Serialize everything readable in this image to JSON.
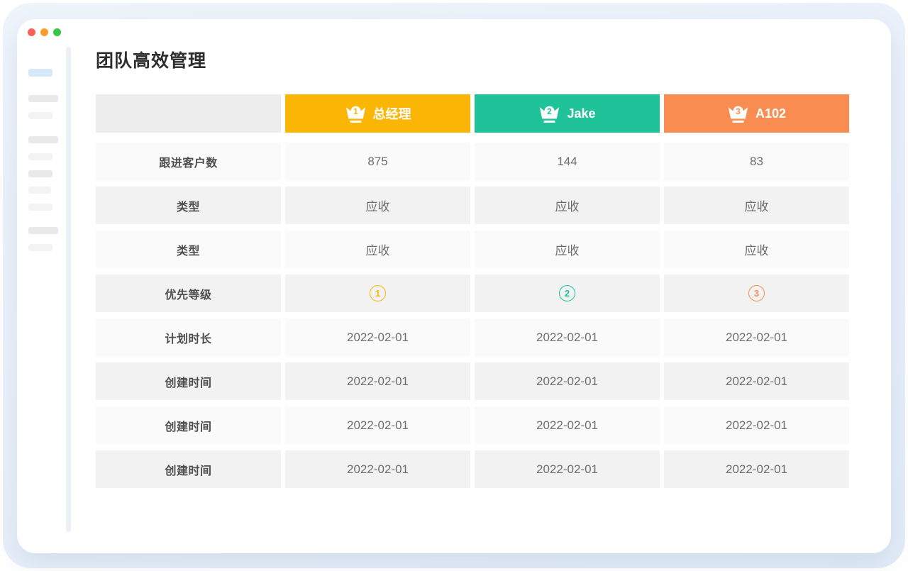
{
  "window": {
    "title": "团队高效管理",
    "traffic_lights": [
      {
        "name": "close",
        "color": "#fb5f57"
      },
      {
        "name": "minimize",
        "color": "#fb9d2e"
      },
      {
        "name": "zoom",
        "color": "#36c648"
      }
    ]
  },
  "colors": {
    "rank1": "#fbb505",
    "rank2": "#1fc299",
    "rank3": "#f98d51",
    "header_corner_bg": "#ededed",
    "row_light_bg": "#fafafa",
    "row_dark_bg": "#f2f2f3"
  },
  "table": {
    "header_columns": [
      {
        "rank": "1",
        "label": "总经理",
        "color": "#fbb505"
      },
      {
        "rank": "2",
        "label": "Jake",
        "color": "#1fc299"
      },
      {
        "rank": "3",
        "label": "A102",
        "color": "#f98d51"
      }
    ],
    "rows": [
      {
        "label": "跟进客户数",
        "type": "text",
        "values": [
          "875",
          "144",
          "83"
        ]
      },
      {
        "label": "类型",
        "type": "text",
        "values": [
          "应收",
          "应收",
          "应收"
        ]
      },
      {
        "label": "类型",
        "type": "text",
        "values": [
          "应收",
          "应收",
          "应收"
        ]
      },
      {
        "label": "优先等级",
        "type": "priority",
        "values": [
          "1",
          "2",
          "3"
        ]
      },
      {
        "label": "计划时长",
        "type": "text",
        "values": [
          "2022-02-01",
          "2022-02-01",
          "2022-02-01"
        ]
      },
      {
        "label": "创建时间",
        "type": "text",
        "values": [
          "2022-02-01",
          "2022-02-01",
          "2022-02-01"
        ]
      },
      {
        "label": "创建时间",
        "type": "text",
        "values": [
          "2022-02-01",
          "2022-02-01",
          "2022-02-01"
        ]
      },
      {
        "label": "创建时间",
        "type": "text",
        "values": [
          "2022-02-01",
          "2022-02-01",
          "2022-02-01"
        ]
      }
    ]
  }
}
